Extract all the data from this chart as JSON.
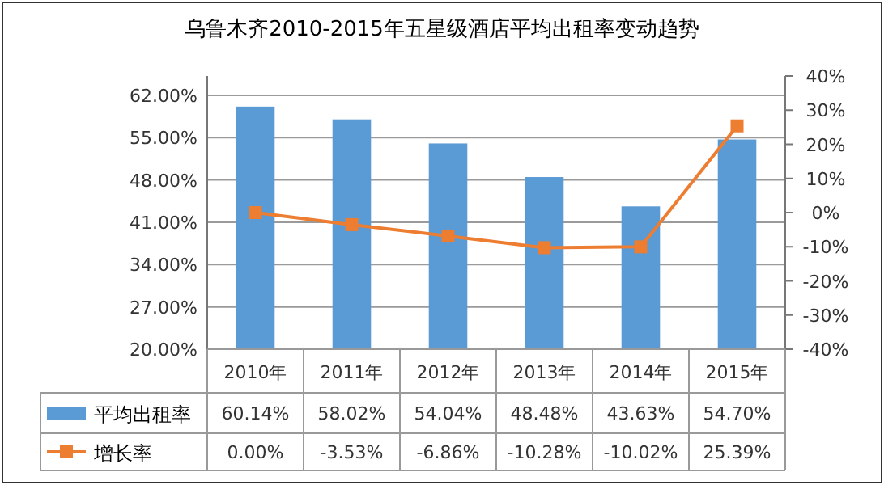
{
  "chart_data": {
    "type": "bar",
    "title": "乌鲁木齐2010-2015年五星级酒店平均出租率变动趋势",
    "categories": [
      "2010年",
      "2011年",
      "2012年",
      "2013年",
      "2014年",
      "2015年"
    ],
    "series": [
      {
        "name": "平均出租率",
        "color": "#5b9bd5",
        "values": [
          60.14,
          58.02,
          54.04,
          48.48,
          43.63,
          54.7
        ],
        "value_labels": [
          "60.14%",
          "58.02%",
          "54.04%",
          "48.48%",
          "43.63%",
          "54.70%"
        ]
      },
      {
        "name": "增长率",
        "type": "line",
        "axis": "y2",
        "color": "#ed7d31",
        "marker": "square",
        "values": [
          0.0,
          -3.53,
          -6.86,
          -10.28,
          -10.02,
          25.39
        ],
        "value_labels": [
          "0.00%",
          "-3.53%",
          "-6.86%",
          "-10.28%",
          "-10.02%",
          "25.39%"
        ]
      }
    ],
    "ylim": [
      20,
      65.2
    ],
    "yticks": [
      {
        "value": 20,
        "label": "20.00%"
      },
      {
        "value": 27,
        "label": "27.00%"
      },
      {
        "value": 34,
        "label": "34.00%"
      },
      {
        "value": 41,
        "label": "41.00%"
      },
      {
        "value": 48,
        "label": "48.00%"
      },
      {
        "value": 55,
        "label": "55.00%"
      },
      {
        "value": 62,
        "label": "62.00%"
      }
    ],
    "y2lim": [
      -40,
      40
    ],
    "y2ticks": [
      {
        "value": -40,
        "label": "-40%"
      },
      {
        "value": -30,
        "label": "-30%"
      },
      {
        "value": -20,
        "label": "-20%"
      },
      {
        "value": -10,
        "label": "-10%"
      },
      {
        "value": 0,
        "label": "0%"
      },
      {
        "value": 10,
        "label": "10%"
      },
      {
        "value": 20,
        "label": "20%"
      },
      {
        "value": 30,
        "label": "30%"
      },
      {
        "value": 40,
        "label": "40%"
      }
    ],
    "grid": "y",
    "legend": "bottom"
  }
}
